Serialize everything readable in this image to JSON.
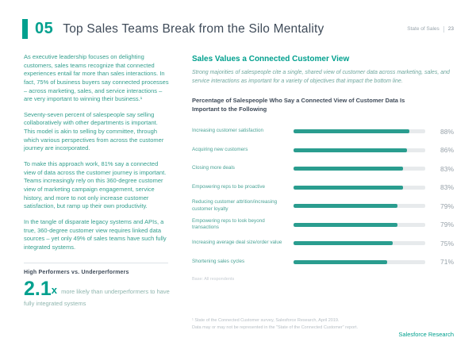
{
  "page": {
    "chapter_number": "05",
    "title": "Top Sales Teams Break from the Silo Mentality",
    "header_right": {
      "report_name": "State of Sales",
      "page_number": "23"
    }
  },
  "left_column": {
    "paragraphs": [
      "As executive leadership focuses on delighting customers, sales teams recognize that connected experiences entail far more than sales interactions. In fact, 75% of business buyers say connected processes – across marketing, sales, and service interactions – are very important to winning their business.¹",
      "Seventy-seven percent of salespeople say selling collaboratively with other departments is important. This model is akin to selling by committee, through which various perspectives from across the customer journey are incorporated.",
      "To make this approach work, 81% say a connected view of data across the customer journey is important. Teams increasingly rely on this 360-degree customer view of marketing campaign engagement, service history, and more to not only increase customer satisfaction, but ramp up their own productivity.",
      "In the tangle of disparate legacy systems and APIs, a true, 360-degree customer view requires linked data sources – yet only 49% of sales teams have such fully integrated systems."
    ],
    "stat_block": {
      "heading": "High Performers vs. Underperformers",
      "stat_value": "2.1",
      "stat_suffix": "x",
      "stat_description": "more likely than underperformers to have fully integrated systems"
    }
  },
  "right_column": {
    "section_title": "Sales Values a Connected Customer View",
    "section_subtitle": "Strong majorities of salespeople cite a single, shared view of customer data across marketing, sales, and service interactions as important for a variety of objectives that impact the bottom line.",
    "chart_title": "Percentage of Salespeople Who Say a Connected View of Customer Data Is Important to the Following",
    "base_note": "Base: All respondents"
  },
  "chart_data": {
    "type": "bar",
    "orientation": "horizontal",
    "categories": [
      "Increasing customer satisfaction",
      "Acquiring new customers",
      "Closing more deals",
      "Empowering reps to be proactive",
      "Reducing customer attrition/increasing customer loyalty",
      "Empowering reps to look beyond transactions",
      "Increasing average deal size/order value",
      "Shortening sales cycles"
    ],
    "values": [
      88,
      86,
      83,
      83,
      79,
      79,
      75,
      71
    ],
    "value_suffix": "%",
    "xlim": [
      0,
      100
    ],
    "bar_color": "#2a9d8f",
    "track_color": "#e7eaec",
    "legend": "none",
    "grid": false
  },
  "footer": {
    "footnotes": [
      "¹ State of the Connected Customer survey, Salesforce Research, April 2019.",
      "Data may or may not be represented in the \"State of the Connected Customer\" report."
    ],
    "brand": "Salesforce Research"
  },
  "colors": {
    "accent_teal": "#00a08e",
    "body_teal": "#35a08f",
    "title_navy": "#3f4b59",
    "muted_grey": "#9aa5ad"
  }
}
